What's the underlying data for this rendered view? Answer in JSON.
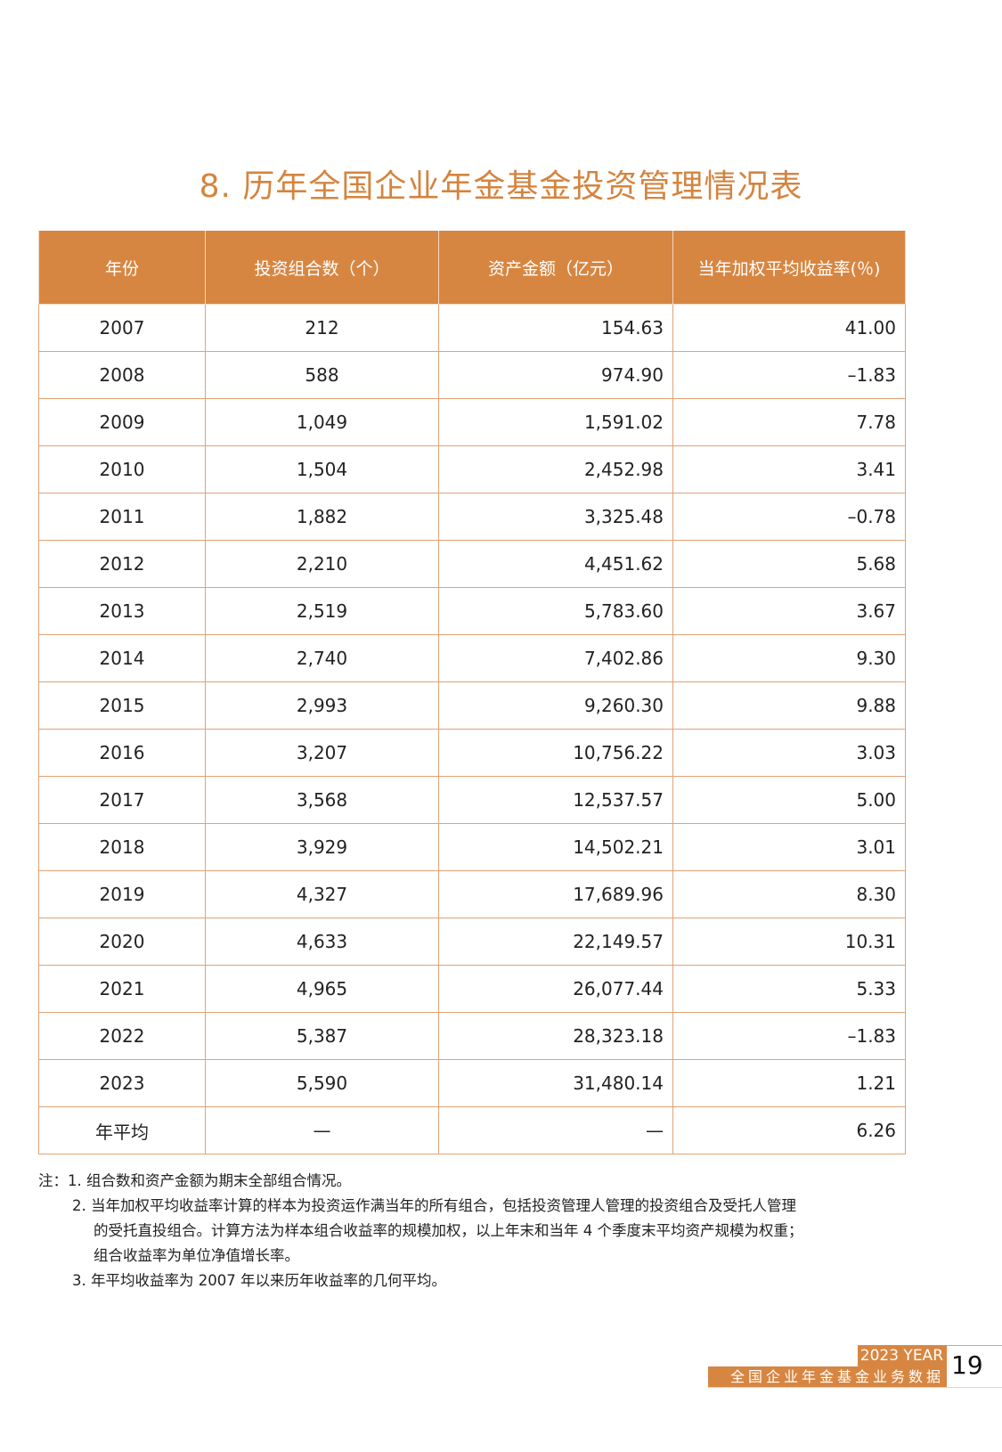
{
  "title": "8. 历年全国企业年金基金投资管理情况表",
  "table": {
    "headers": [
      "年份",
      "投资组合数（个）",
      "资产金额（亿元）",
      "当年加权平均收益率(％)"
    ],
    "rows": [
      [
        "2007",
        "212",
        "154.63",
        "41.00"
      ],
      [
        "2008",
        "588",
        "974.90",
        "–1.83"
      ],
      [
        "2009",
        "1,049",
        "1,591.02",
        "7.78"
      ],
      [
        "2010",
        "1,504",
        "2,452.98",
        "3.41"
      ],
      [
        "2011",
        "1,882",
        "3,325.48",
        "–0.78"
      ],
      [
        "2012",
        "2,210",
        "4,451.62",
        "5.68"
      ],
      [
        "2013",
        "2,519",
        "5,783.60",
        "3.67"
      ],
      [
        "2014",
        "2,740",
        "7,402.86",
        "9.30"
      ],
      [
        "2015",
        "2,993",
        "9,260.30",
        "9.88"
      ],
      [
        "2016",
        "3,207",
        "10,756.22",
        "3.03"
      ],
      [
        "2017",
        "3,568",
        "12,537.57",
        "5.00"
      ],
      [
        "2018",
        "3,929",
        "14,502.21",
        "3.01"
      ],
      [
        "2019",
        "4,327",
        "17,689.96",
        "8.30"
      ],
      [
        "2020",
        "4,633",
        "22,149.57",
        "10.31"
      ],
      [
        "2021",
        "4,965",
        "26,077.44",
        "5.33"
      ],
      [
        "2022",
        "5,387",
        "28,323.18",
        "–1.83"
      ],
      [
        "2023",
        "5,590",
        "31,480.14",
        "1.21"
      ],
      [
        "年平均",
        "—",
        "—",
        "6.26"
      ]
    ]
  },
  "notes": {
    "n1": "注：1. 组合数和资产金额为期末全部组合情况。",
    "n2a": "2. 当年加权平均收益率计算的样本为投资运作满当年的所有组合，包括投资管理人管理的投资组合及受托人管理",
    "n2b": "的受托直投组合。计算方法为样本组合收益率的规模加权，以上年末和当年 4 个季度末平均资产规模为权重；",
    "n2c": "组合收益率为单位净值增长率。",
    "n3": "3. 年平均收益率为 2007 年以来历年收益率的几何平均。"
  },
  "footer": {
    "year": "2023 YEAR",
    "subtitle": "全国企业年金基金业务数据",
    "page": "19"
  },
  "colors": {
    "accent": "#d78641",
    "title": "#d4843f",
    "border": "#e2a274"
  }
}
